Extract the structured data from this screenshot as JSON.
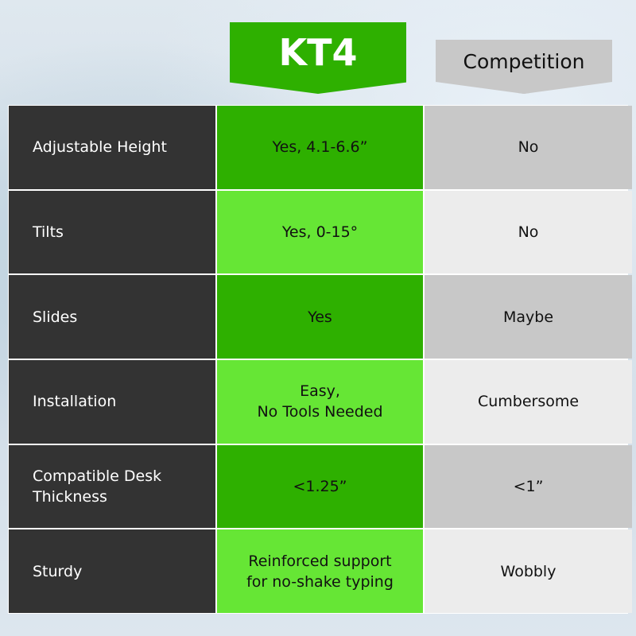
{
  "headers": {
    "product": "KT4",
    "competition": "Competition"
  },
  "colors": {
    "feature_bg": "#333333",
    "kt4_dark": "#2eb000",
    "kt4_light": "#66e635",
    "comp_dark": "#c8c8c8",
    "comp_light": "#ececec"
  },
  "rows": [
    {
      "feature": "Adjustable Height",
      "kt4": "Yes, 4.1-6.6”",
      "competition": "No"
    },
    {
      "feature": "Tilts",
      "kt4": "Yes, 0-15°",
      "competition": "No"
    },
    {
      "feature": "Slides",
      "kt4": "Yes",
      "competition": "Maybe"
    },
    {
      "feature": "Installation",
      "kt4": "Easy,\nNo Tools Needed",
      "competition": "Cumbersome"
    },
    {
      "feature": "Compatible Desk\nThickness",
      "kt4": "<1.25”",
      "competition": "<1”"
    },
    {
      "feature": "Sturdy",
      "kt4": "Reinforced support\nfor no-shake typing",
      "competition": "Wobbly"
    }
  ]
}
